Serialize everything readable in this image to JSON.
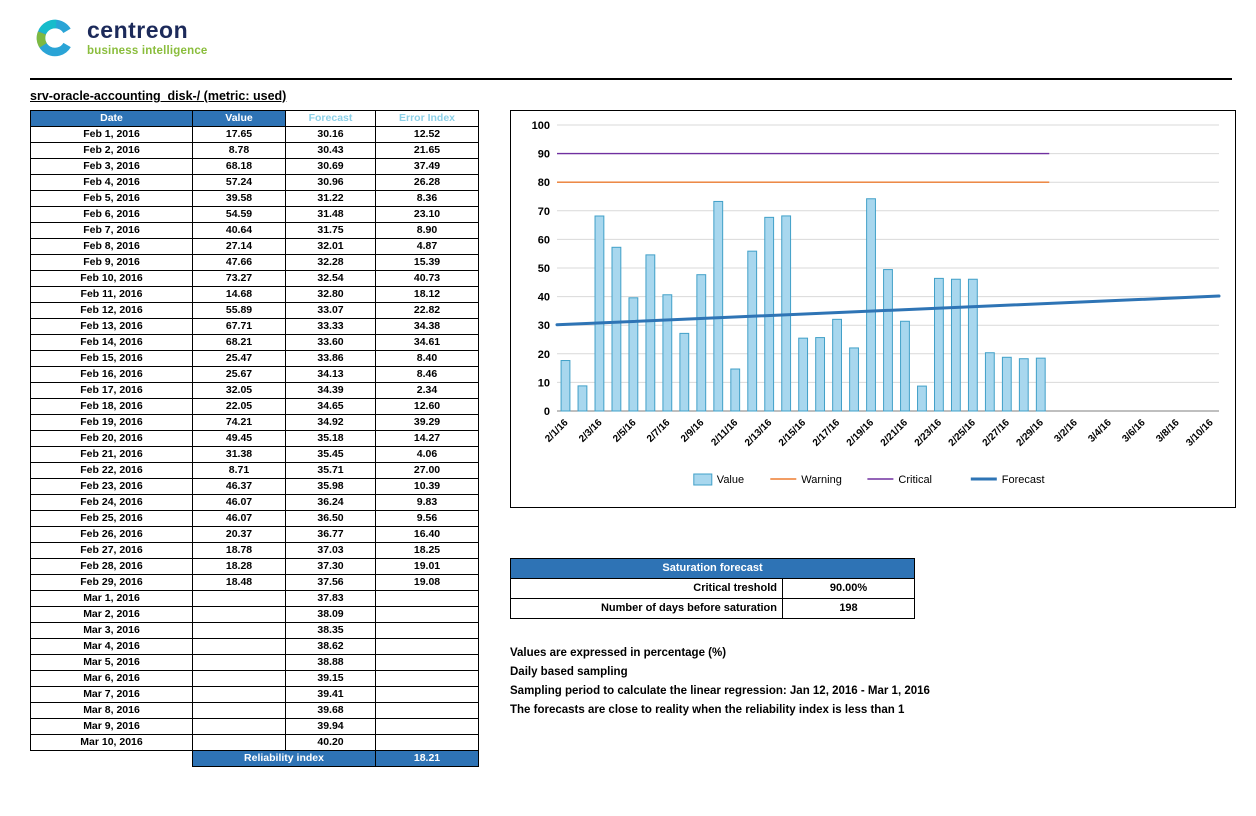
{
  "brand": {
    "name": "centreon",
    "tagline": "business intelligence"
  },
  "theme": {
    "accent_blue": "#2E73B5",
    "light_blue": "#8BD0E8",
    "brand_navy": "#1C2A5A",
    "brand_green": "#8ABD3C",
    "logo_blue": "#2AA4D6",
    "logo_teal": "#17BCCB",
    "logo_green": "#7DB942",
    "grid_gray": "#D9D9D9",
    "axis_gray": "#7F7F7F"
  },
  "page_title": "srv-oracle-accounting_disk-/ (metric: used)",
  "table": {
    "headers": [
      "Date",
      "Value",
      "Forecast",
      "Error Index"
    ],
    "rows": [
      [
        "Feb 1, 2016",
        "17.65",
        "30.16",
        "12.52"
      ],
      [
        "Feb 2, 2016",
        "8.78",
        "30.43",
        "21.65"
      ],
      [
        "Feb 3, 2016",
        "68.18",
        "30.69",
        "37.49"
      ],
      [
        "Feb 4, 2016",
        "57.24",
        "30.96",
        "26.28"
      ],
      [
        "Feb 5, 2016",
        "39.58",
        "31.22",
        "8.36"
      ],
      [
        "Feb 6, 2016",
        "54.59",
        "31.48",
        "23.10"
      ],
      [
        "Feb 7, 2016",
        "40.64",
        "31.75",
        "8.90"
      ],
      [
        "Feb 8, 2016",
        "27.14",
        "32.01",
        "4.87"
      ],
      [
        "Feb 9, 2016",
        "47.66",
        "32.28",
        "15.39"
      ],
      [
        "Feb 10, 2016",
        "73.27",
        "32.54",
        "40.73"
      ],
      [
        "Feb 11, 2016",
        "14.68",
        "32.80",
        "18.12"
      ],
      [
        "Feb 12, 2016",
        "55.89",
        "33.07",
        "22.82"
      ],
      [
        "Feb 13, 2016",
        "67.71",
        "33.33",
        "34.38"
      ],
      [
        "Feb 14, 2016",
        "68.21",
        "33.60",
        "34.61"
      ],
      [
        "Feb 15, 2016",
        "25.47",
        "33.86",
        "8.40"
      ],
      [
        "Feb 16, 2016",
        "25.67",
        "34.13",
        "8.46"
      ],
      [
        "Feb 17, 2016",
        "32.05",
        "34.39",
        "2.34"
      ],
      [
        "Feb 18, 2016",
        "22.05",
        "34.65",
        "12.60"
      ],
      [
        "Feb 19, 2016",
        "74.21",
        "34.92",
        "39.29"
      ],
      [
        "Feb 20, 2016",
        "49.45",
        "35.18",
        "14.27"
      ],
      [
        "Feb 21, 2016",
        "31.38",
        "35.45",
        "4.06"
      ],
      [
        "Feb 22, 2016",
        "8.71",
        "35.71",
        "27.00"
      ],
      [
        "Feb 23, 2016",
        "46.37",
        "35.98",
        "10.39"
      ],
      [
        "Feb 24, 2016",
        "46.07",
        "36.24",
        "9.83"
      ],
      [
        "Feb 25, 2016",
        "46.07",
        "36.50",
        "9.56"
      ],
      [
        "Feb 26, 2016",
        "20.37",
        "36.77",
        "16.40"
      ],
      [
        "Feb 27, 2016",
        "18.78",
        "37.03",
        "18.25"
      ],
      [
        "Feb 28, 2016",
        "18.28",
        "37.30",
        "19.01"
      ],
      [
        "Feb 29, 2016",
        "18.48",
        "37.56",
        "19.08"
      ],
      [
        "Mar 1, 2016",
        "",
        "37.83",
        ""
      ],
      [
        "Mar 2, 2016",
        "",
        "38.09",
        ""
      ],
      [
        "Mar 3, 2016",
        "",
        "38.35",
        ""
      ],
      [
        "Mar 4, 2016",
        "",
        "38.62",
        ""
      ],
      [
        "Mar 5, 2016",
        "",
        "38.88",
        ""
      ],
      [
        "Mar 6, 2016",
        "",
        "39.15",
        ""
      ],
      [
        "Mar 7, 2016",
        "",
        "39.41",
        ""
      ],
      [
        "Mar 8, 2016",
        "",
        "39.68",
        ""
      ],
      [
        "Mar 9, 2016",
        "",
        "39.94",
        ""
      ],
      [
        "Mar 10, 2016",
        "",
        "40.20",
        ""
      ]
    ],
    "footer": {
      "label": "Reliability index",
      "value": "18.21"
    }
  },
  "chart_data": {
    "type": "bar",
    "title": "",
    "ylim": [
      0,
      100
    ],
    "ytick_step": 10,
    "grid": true,
    "legend_position": "bottom",
    "x_tick_every": 2,
    "categories": [
      "2/1/16",
      "2/2/16",
      "2/3/16",
      "2/4/16",
      "2/5/16",
      "2/6/16",
      "2/7/16",
      "2/8/16",
      "2/9/16",
      "2/10/16",
      "2/11/16",
      "2/12/16",
      "2/13/16",
      "2/14/16",
      "2/15/16",
      "2/16/16",
      "2/17/16",
      "2/18/16",
      "2/19/16",
      "2/20/16",
      "2/21/16",
      "2/22/16",
      "2/23/16",
      "2/24/16",
      "2/25/16",
      "2/26/16",
      "2/27/16",
      "2/28/16",
      "2/29/16",
      "3/1/16",
      "3/2/16",
      "3/3/16",
      "3/4/16",
      "3/5/16",
      "3/6/16",
      "3/7/16",
      "3/8/16",
      "3/9/16",
      "3/10/16"
    ],
    "series": [
      {
        "name": "Value",
        "type": "bar",
        "color": "#A8D7EE",
        "border_color": "#41A0C8",
        "values": [
          17.65,
          8.78,
          68.18,
          57.24,
          39.58,
          54.59,
          40.64,
          27.14,
          47.66,
          73.27,
          14.68,
          55.89,
          67.71,
          68.21,
          25.47,
          25.67,
          32.05,
          22.05,
          74.21,
          49.45,
          31.38,
          8.71,
          46.37,
          46.07,
          46.07,
          20.37,
          18.78,
          18.28,
          18.48
        ]
      },
      {
        "name": "Warning",
        "type": "line",
        "color": "#ED7D31",
        "value": 80,
        "start_day": 0,
        "end_day": 29
      },
      {
        "name": "Critical",
        "type": "line",
        "color": "#7030A0",
        "value": 90,
        "start_day": 0,
        "end_day": 29
      },
      {
        "name": "Forecast",
        "type": "line",
        "color": "#2E74B5",
        "start_value": 30.16,
        "end_value": 40.2
      }
    ]
  },
  "saturation": {
    "header": "Saturation forecast",
    "rows": [
      {
        "label": "Critical treshold",
        "value": "90.00%"
      },
      {
        "label": "Number of days before saturation",
        "value": "198"
      }
    ]
  },
  "notes": [
    "Values are expressed in percentage (%)",
    "Daily based sampling",
    "Sampling period to calculate the linear regression: Jan 12, 2016 - Mar 1, 2016",
    "The forecasts are close to reality when the reliability index is less than 1"
  ]
}
